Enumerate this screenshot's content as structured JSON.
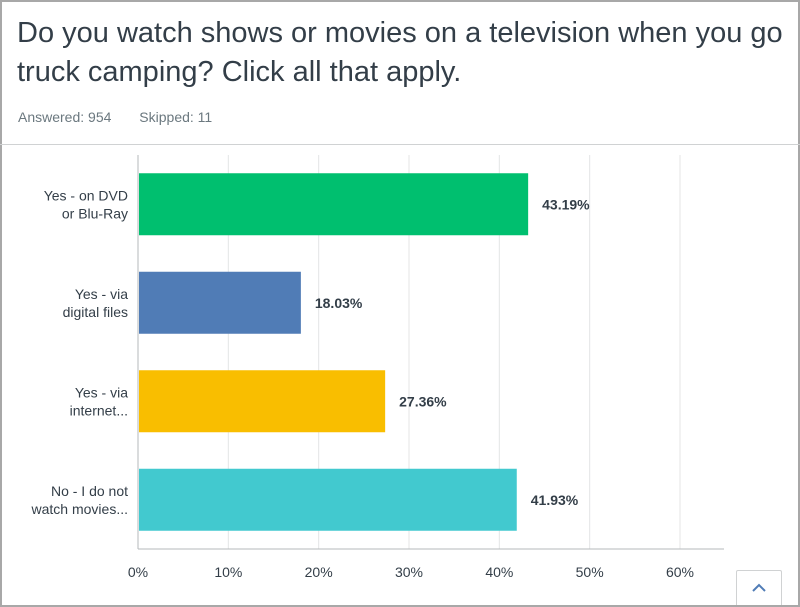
{
  "question": {
    "title": "Do you watch shows or movies on a television when you go truck camping? Click all that apply.",
    "answered_label": "Answered: 954",
    "skipped_label": "Skipped: 11"
  },
  "chart_data": {
    "type": "bar",
    "orientation": "horizontal",
    "categories": [
      [
        "Yes - on DVD",
        "or Blu-Ray"
      ],
      [
        "Yes - via",
        "digital files"
      ],
      [
        "Yes - via",
        "internet..."
      ],
      [
        "No - I do not",
        "watch movies..."
      ]
    ],
    "values": [
      43.19,
      18.03,
      27.36,
      41.93
    ],
    "value_labels": [
      "43.19%",
      "18.03%",
      "27.36%",
      "41.93%"
    ],
    "colors": [
      "#00bf6f",
      "#507cb6",
      "#f9be00",
      "#42c9cf"
    ],
    "xlim": [
      0,
      65
    ],
    "xticks": [
      0,
      10,
      20,
      30,
      40,
      50,
      60
    ],
    "xtick_labels": [
      "0%",
      "10%",
      "20%",
      "30%",
      "40%",
      "50%",
      "60%"
    ],
    "grid": true,
    "legend": false
  },
  "colors": {
    "title_text": "#333e48",
    "muted_text": "#6b787f",
    "grid": "#e4e5e6",
    "axis": "#b6b9bb",
    "scroll_icon": "#507cb6"
  },
  "icons": {
    "scroll_top": "chevron-up-icon"
  }
}
